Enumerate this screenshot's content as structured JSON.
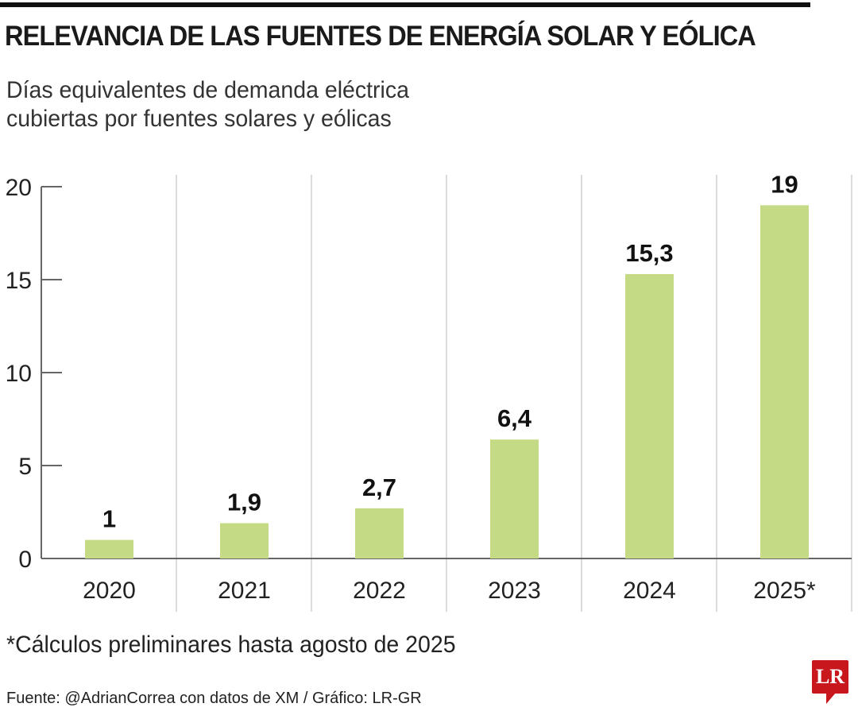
{
  "title": "RELEVANCIA DE LAS FUENTES DE ENERGÍA SOLAR Y EÓLICA",
  "subtitle_lines": [
    "Días equivalentes de demanda eléctrica",
    "cubiertas por fuentes solares y eólicas"
  ],
  "footnote": "*Cálculos preliminares hasta agosto de 2025",
  "source": "Fuente: @AdrianCorrea con datos de XM / Gráfico: LR-GR",
  "logo": "LR",
  "colors": {
    "bar": "#c5da85",
    "logo": "#c8181e"
  },
  "chart_data": {
    "type": "bar",
    "categories": [
      "2020",
      "2021",
      "2022",
      "2023",
      "2024",
      "2025*"
    ],
    "values": [
      1,
      1.9,
      2.7,
      6.4,
      15.3,
      19
    ],
    "value_labels": [
      "1",
      "1,9",
      "2,7",
      "6,4",
      "15,3",
      "19"
    ],
    "yticks": [
      "0",
      "5",
      "10",
      "15",
      "20"
    ],
    "ylim": [
      0,
      20
    ],
    "grid": "vertical separators",
    "xlabel": "",
    "ylabel": ""
  }
}
